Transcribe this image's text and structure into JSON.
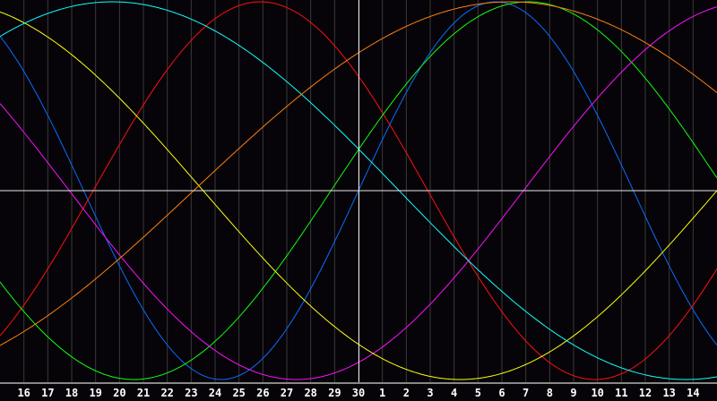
{
  "chart_data": {
    "type": "line",
    "x_labels": [
      "16",
      "17",
      "18",
      "19",
      "20",
      "21",
      "22",
      "23",
      "24",
      "25",
      "26",
      "27",
      "28",
      "29",
      "30",
      "1",
      "2",
      "3",
      "4",
      "5",
      "6",
      "7",
      "8",
      "9",
      "10",
      "11",
      "12",
      "13",
      "14"
    ],
    "center_label": "30",
    "ylim": [
      -1,
      1
    ],
    "grid": true,
    "series": [
      {
        "color": "#0a6cff",
        "period_days": 23,
        "rising_zero_offset_days": 0
      },
      {
        "color": "#ff1010",
        "period_days": 28,
        "rising_zero_offset_days": -11.1
      },
      {
        "color": "#10ff10",
        "period_days": 33,
        "rising_zero_offset_days": -1.15
      },
      {
        "color": "#ff10ff",
        "period_days": 38,
        "rising_zero_offset_days": 6.9
      },
      {
        "color": "#ffff10",
        "period_days": 43,
        "rising_zero_offset_days": 15
      },
      {
        "color": "#10ffff",
        "period_days": 48,
        "rising_zero_offset_days": -22.3
      },
      {
        "color": "#ff8010",
        "period_days": 53,
        "rising_zero_offset_days": -6.9
      }
    ]
  }
}
